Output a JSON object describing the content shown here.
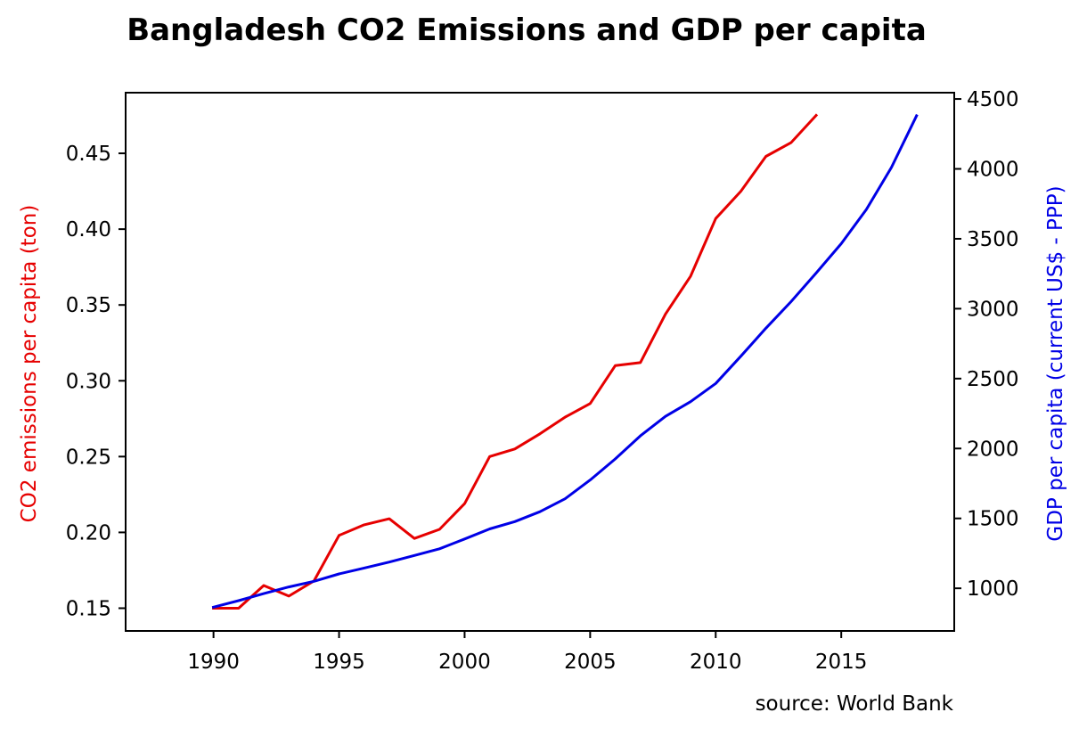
{
  "chart_data": {
    "type": "line",
    "title": "Bangladesh CO2 Emissions and GDP per capita",
    "source": "source: World Bank",
    "xlim": [
      1986.5,
      2019.5
    ],
    "xticks": [
      1990,
      1995,
      2000,
      2005,
      2010,
      2015
    ],
    "left_axis": {
      "label": "CO2 emissions per capita (ton)",
      "color": "#e60000",
      "ylim": [
        0.135,
        0.49
      ],
      "ticks": [
        "0.15",
        "0.20",
        "0.25",
        "0.30",
        "0.35",
        "0.40",
        "0.45"
      ]
    },
    "right_axis": {
      "label": "GDP per capita (current US$ - PPP)",
      "color": "#0000e6",
      "ylim": [
        695,
        4545
      ],
      "ticks": [
        "1000",
        "1500",
        "2000",
        "2500",
        "3000",
        "3500",
        "4000",
        "4500"
      ]
    },
    "series": [
      {
        "axis": "left",
        "color": "#e60000",
        "x": [
          1990,
          1991,
          1992,
          1993,
          1994,
          1995,
          1996,
          1997,
          1998,
          1999,
          2000,
          2001,
          2002,
          2003,
          2004,
          2005,
          2006,
          2007,
          2008,
          2009,
          2010,
          2011,
          2012,
          2013,
          2014
        ],
        "values": [
          0.15,
          0.15,
          0.165,
          0.158,
          0.168,
          0.198,
          0.205,
          0.209,
          0.196,
          0.202,
          0.219,
          0.25,
          0.255,
          0.265,
          0.276,
          0.285,
          0.31,
          0.312,
          0.344,
          0.369,
          0.407,
          0.425,
          0.448,
          0.457,
          0.475
        ]
      },
      {
        "axis": "right",
        "color": "#0000e6",
        "x": [
          1990,
          1991,
          1992,
          1993,
          1994,
          1995,
          1996,
          1997,
          1998,
          1999,
          2000,
          2001,
          2002,
          2003,
          2004,
          2005,
          2006,
          2007,
          2008,
          2009,
          2010,
          2011,
          2012,
          2013,
          2014,
          2015,
          2016,
          2017,
          2018
        ],
        "values": [
          865,
          912,
          962,
          1010,
          1050,
          1103,
          1145,
          1188,
          1235,
          1283,
          1353,
          1425,
          1477,
          1548,
          1640,
          1775,
          1925,
          2090,
          2230,
          2335,
          2465,
          2660,
          2860,
          3050,
          3255,
          3465,
          3710,
          4010,
          4380
        ]
      }
    ]
  }
}
